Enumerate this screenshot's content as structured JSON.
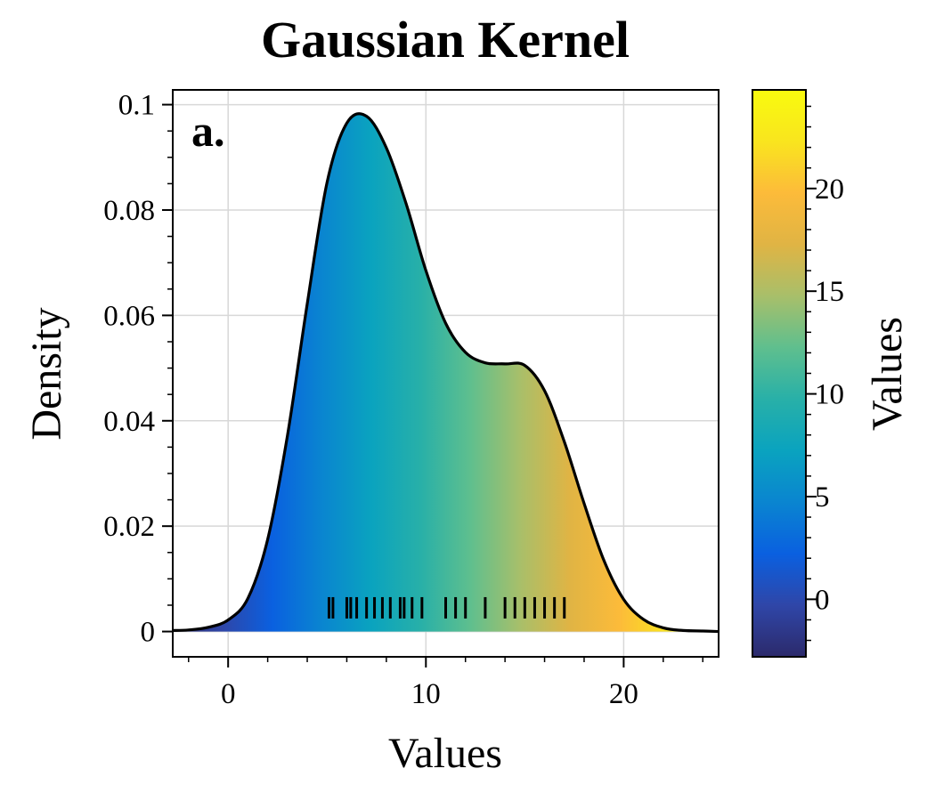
{
  "chart_data": {
    "type": "area",
    "title": "Gaussian Kernel",
    "xlabel": "Values",
    "ylabel": "Density",
    "panel_label": "a.",
    "xlim": [
      -2.8,
      24.8
    ],
    "ylim": [
      -0.0048,
      0.1028
    ],
    "xticks": [
      0,
      10,
      20
    ],
    "yticks": [
      0,
      0.02,
      0.04,
      0.06,
      0.08,
      0.1
    ],
    "xtick_labels": [
      "0",
      "10",
      "20"
    ],
    "ytick_labels": [
      "0",
      "0.02",
      "0.04",
      "0.06",
      "0.08",
      "0.1"
    ],
    "grid": true,
    "kde_curve": {
      "x": [
        -2.8,
        -2,
        -1,
        0,
        1,
        2,
        3,
        4,
        5,
        6,
        7,
        8,
        9,
        10,
        11,
        12,
        13,
        14,
        15,
        16,
        17,
        18,
        19,
        20,
        21,
        22,
        23,
        24,
        24.8
      ],
      "y": [
        0.0002,
        0.0003,
        0.0008,
        0.0022,
        0.0063,
        0.0175,
        0.0372,
        0.0622,
        0.0852,
        0.0965,
        0.0978,
        0.0918,
        0.0812,
        0.0685,
        0.0585,
        0.053,
        0.051,
        0.0508,
        0.0505,
        0.0457,
        0.036,
        0.0243,
        0.0135,
        0.0061,
        0.0023,
        0.0007,
        0.0002,
        0.0001,
        0.0
      ]
    },
    "rug": {
      "values": [
        5.1,
        5.3,
        6.0,
        6.2,
        6.5,
        7.0,
        7.4,
        7.8,
        8.2,
        8.7,
        8.9,
        9.3,
        9.8,
        11.0,
        11.5,
        12.0,
        13.0,
        14.0,
        14.5,
        15.0,
        15.5,
        16.0,
        16.5,
        17.0
      ],
      "y": 0.0045
    },
    "colorbar": {
      "label": "Values",
      "range": [
        -2.8,
        24.8
      ],
      "ticks": [
        0,
        5,
        10,
        15,
        20
      ],
      "tick_labels": [
        "0",
        "5",
        "10",
        "15",
        "20"
      ],
      "colormap_stops": [
        "#2c2a6b",
        "#2f46a8",
        "#0a60e0",
        "#0a85d0",
        "#0aa3bf",
        "#28b0a8",
        "#5fbf8e",
        "#a8bf6a",
        "#e0b444",
        "#fcbb3a",
        "#f9e51e",
        "#f9fb0e"
      ]
    },
    "colors": {
      "curve": "#000000",
      "rug": "#000000",
      "grid": "#d8d8d8"
    }
  }
}
